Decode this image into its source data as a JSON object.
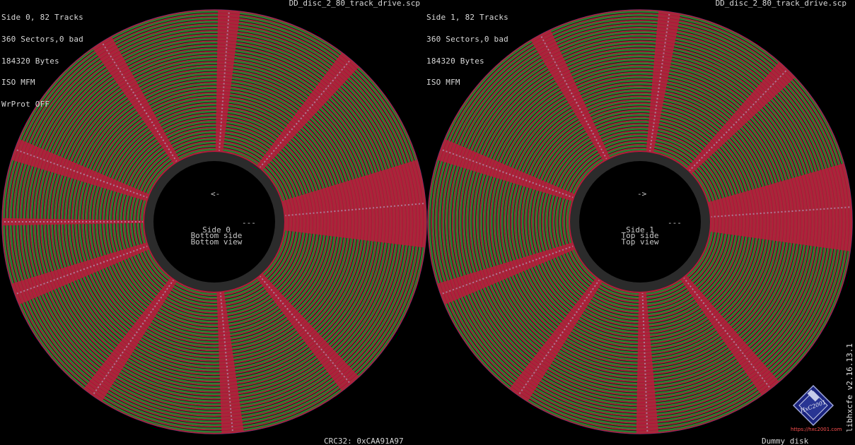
{
  "colors": {
    "background": "#000000",
    "good_sector": "#2e7d32",
    "sector_gap": "#b71c3c",
    "index_marker": "#7a2a8a",
    "hub": "#2a2a2a",
    "text": "#d8d8d8"
  },
  "side0": {
    "info": [
      "Side 0, 82 Tracks",
      "360 Sectors,0 bad",
      "184320 Bytes",
      "ISO MFM",
      "WrProt OFF"
    ],
    "filename": "DD_disc_2_80_track_drive.scp",
    "arrow": "<-",
    "dashes": "---",
    "center_lines": [
      "Side 0",
      "Bottom side",
      "Bottom view"
    ]
  },
  "side1": {
    "info": [
      "Side 1, 82 Tracks",
      "360 Sectors,0 bad",
      "184320 Bytes",
      "ISO MFM"
    ],
    "filename": "DD_disc_2_80_track_drive.scp",
    "arrow": "->",
    "dashes": "---",
    "center_lines": [
      "Side 1",
      "Top side",
      "Top view"
    ]
  },
  "footer": {
    "crc": "CRC32: 0xCAA91A97",
    "status": "Dummy disk"
  },
  "version": "libhxcfe v2.16.13.1",
  "logo_text": "HxC2001",
  "url": "https://hxc2001.com"
}
